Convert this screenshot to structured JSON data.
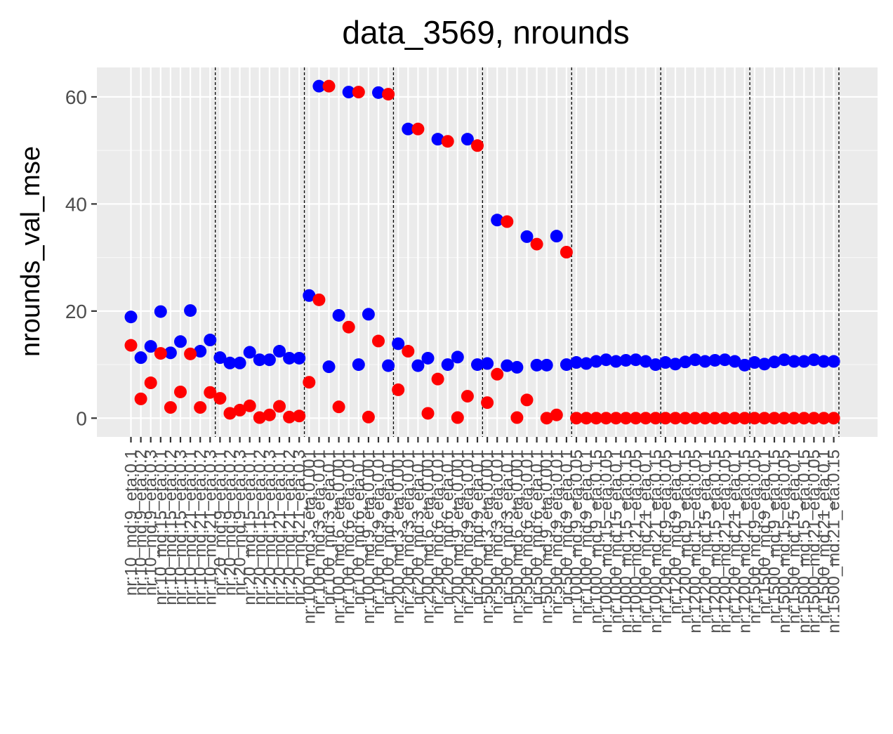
{
  "chart_data": {
    "type": "scatter",
    "title": "data_3569, nrounds",
    "xlabel": "",
    "ylabel": "nrounds_val_mse",
    "ylim": [
      -3.5,
      65.5
    ],
    "yticks": [
      0,
      20,
      40,
      60
    ],
    "ytick_labels": [
      "0",
      "20",
      "40",
      "60"
    ],
    "grid": true,
    "legend": "none",
    "categories": [
      "nr:10_md:9_eta:0.1",
      "nr:10_md:9_eta:0.2",
      "nr:10_md:9_eta:0.3",
      "nr:10_md:15_eta:0.1",
      "nr:10_md:15_eta:0.2",
      "nr:10_md:15_eta:0.3",
      "nr:10_md:21_eta:0.1",
      "nr:10_md:21_eta:0.2",
      "nr:10_md:21_eta:0.3",
      "nr:20_md:9_eta:0.1",
      "nr:20_md:9_eta:0.2",
      "nr:20_md:9_eta:0.3",
      "nr:20_md:15_eta:0.1",
      "nr:20_md:15_eta:0.2",
      "nr:20_md:15_eta:0.3",
      "nr:20_md:21_eta:0.1",
      "nr:20_md:21_eta:0.2",
      "nr:20_md:21_eta:0.3",
      "nr:100_md:3_eta:0.001",
      "nr:100_md:3_eta:0.01",
      "nr:100_md:3_eta:0.1",
      "nr:100_md:6_eta:0.001",
      "nr:100_md:6_eta:0.01",
      "nr:100_md:6_eta:0.1",
      "nr:100_md:9_eta:0.001",
      "nr:100_md:9_eta:0.01",
      "nr:100_md:9_eta:0.1",
      "nr:200_md:3_eta:0.001",
      "nr:200_md:3_eta:0.01",
      "nr:200_md:3_eta:0.1",
      "nr:200_md:6_eta:0.001",
      "nr:200_md:6_eta:0.01",
      "nr:200_md:6_eta:0.1",
      "nr:200_md:9_eta:0.001",
      "nr:200_md:9_eta:0.01",
      "nr:200_md:9_eta:0.1",
      "nr:500_md:3_eta:0.001",
      "nr:500_md:3_eta:0.01",
      "nr:500_md:3_eta:0.1",
      "nr:500_md:6_eta:0.001",
      "nr:500_md:6_eta:0.01",
      "nr:500_md:6_eta:0.1",
      "nr:500_md:9_eta:0.001",
      "nr:500_md:9_eta:0.01",
      "nr:500_md:9_eta:0.1",
      "nr:1000_md:9_eta:0.05",
      "nr:1000_md:9_eta:0.1",
      "nr:1000_md:9_eta:0.15",
      "nr:1000_md:15_eta:0.05",
      "nr:1000_md:15_eta:0.1",
      "nr:1000_md:15_eta:0.15",
      "nr:1000_md:21_eta:0.05",
      "nr:1000_md:21_eta:0.1",
      "nr:1000_md:21_eta:0.15",
      "nr:1200_md:9_eta:0.05",
      "nr:1200_md:9_eta:0.1",
      "nr:1200_md:9_eta:0.15",
      "nr:1200_md:15_eta:0.05",
      "nr:1200_md:15_eta:0.1",
      "nr:1200_md:15_eta:0.15",
      "nr:1200_md:21_eta:0.05",
      "nr:1200_md:21_eta:0.1",
      "nr:1200_md:21_eta:0.15",
      "nr:1500_md:9_eta:0.05",
      "nr:1500_md:9_eta:0.1",
      "nr:1500_md:9_eta:0.15",
      "nr:1500_md:15_eta:0.05",
      "nr:1500_md:15_eta:0.1",
      "nr:1500_md:15_eta:0.15",
      "nr:1500_md:21_eta:0.05",
      "nr:1500_md:21_eta:0.1",
      "nr:1500_md:21_eta:0.15"
    ],
    "group_separators_after_index": [
      8,
      17,
      26,
      35,
      44,
      53,
      62,
      71
    ],
    "series": [
      {
        "color": "#0000ff",
        "values": [
          18.9,
          11.3,
          13.4,
          19.9,
          12.2,
          14.3,
          20.1,
          12.5,
          14.6,
          11.3,
          10.3,
          10.3,
          12.3,
          10.9,
          10.9,
          12.5,
          11.2,
          11.2,
          22.9,
          62.0,
          9.6,
          19.2,
          60.9,
          10.0,
          19.4,
          60.8,
          9.8,
          13.9,
          54.0,
          9.8,
          11.2,
          52.1,
          10.0,
          11.4,
          52.1,
          10.0,
          10.2,
          37.0,
          9.8,
          9.5,
          33.9,
          9.9,
          9.9,
          34.0,
          10.0,
          10.4,
          10.2,
          10.6,
          10.9,
          10.6,
          10.8,
          10.9,
          10.6,
          10.0,
          10.4,
          10.1,
          10.5,
          10.9,
          10.6,
          10.8,
          10.9,
          10.6,
          9.9,
          10.4,
          10.1,
          10.5,
          10.9,
          10.6,
          10.6,
          10.9,
          10.6,
          10.6
        ]
      },
      {
        "color": "#ff0000",
        "values": [
          13.6,
          3.6,
          6.6,
          12.1,
          2.0,
          4.9,
          12.0,
          2.0,
          4.8,
          3.7,
          0.9,
          1.5,
          2.3,
          0.1,
          0.6,
          2.2,
          0.2,
          0.4,
          6.7,
          22.1,
          62.0,
          2.1,
          17.0,
          60.9,
          0.2,
          14.4,
          60.5,
          5.3,
          12.5,
          54.0,
          0.9,
          7.3,
          51.7,
          0.1,
          4.1,
          50.9,
          2.9,
          8.2,
          36.7,
          0.1,
          3.4,
          32.5,
          0.0,
          0.6,
          31.0,
          0.0,
          0.0,
          0.0,
          0.0,
          0.0,
          0.0,
          0.0,
          0.0,
          0.0,
          0.0,
          0.0,
          0.0,
          0.0,
          0.0,
          0.0,
          0.0,
          0.0,
          0.0,
          0.0,
          0.0,
          0.0,
          0.0,
          0.0,
          0.0,
          0.0,
          0.0,
          0.0
        ]
      }
    ]
  }
}
